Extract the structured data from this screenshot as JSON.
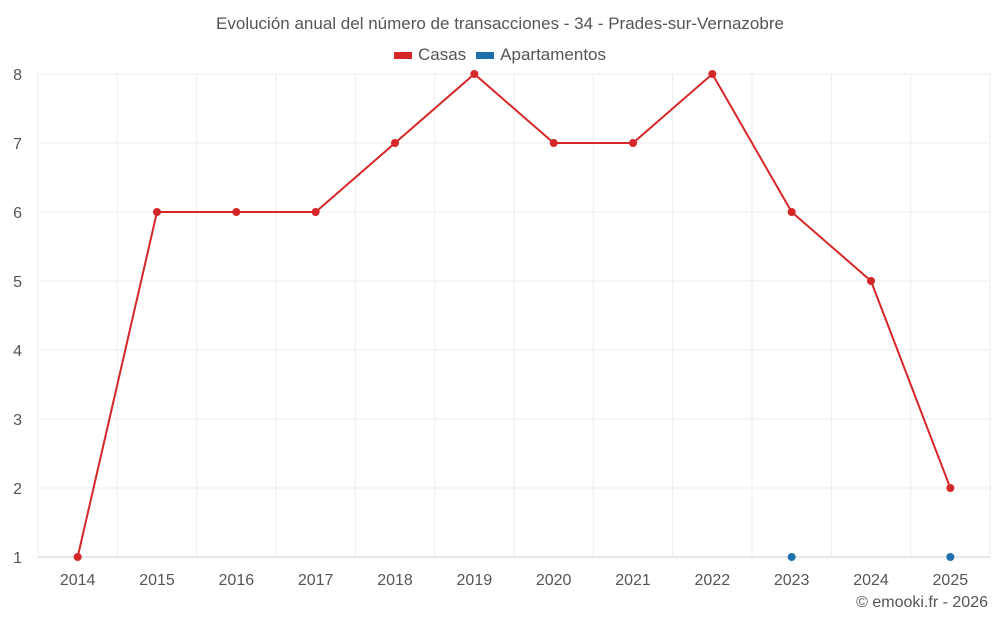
{
  "chart_data": {
    "type": "line",
    "title": "Evolución anual del número de transacciones - 34 - Prades-sur-Vernazobre",
    "categories": [
      "2014",
      "2015",
      "2016",
      "2017",
      "2018",
      "2019",
      "2020",
      "2021",
      "2022",
      "2023",
      "2024",
      "2025"
    ],
    "series": [
      {
        "name": "Casas",
        "color": "#d62728",
        "values": [
          1,
          6,
          6,
          6,
          7,
          8,
          7,
          7,
          8,
          6,
          5,
          2
        ]
      },
      {
        "name": "Apartamentos",
        "color": "#1f6fad",
        "values": [
          null,
          null,
          null,
          null,
          null,
          null,
          null,
          null,
          null,
          1,
          null,
          1
        ]
      }
    ],
    "yticks": [
      "1",
      "2",
      "3",
      "4",
      "5",
      "6",
      "7",
      "8"
    ],
    "ylim": [
      1,
      8
    ],
    "grid": true,
    "legend": "top-center",
    "credit": "© emooki.fr - 2026"
  }
}
